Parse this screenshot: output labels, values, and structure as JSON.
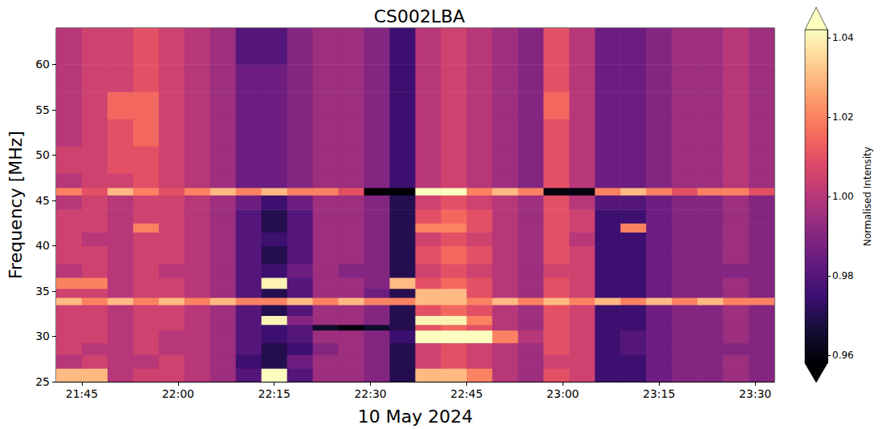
{
  "chart_data": {
    "type": "heatmap",
    "title": "CS002LBA",
    "x_label": "10 May 2024",
    "y_label": "Frequency [MHz]",
    "color": "magma",
    "grid": false,
    "xlim": [
      1301,
      1413
    ],
    "xticks": [
      {
        "value": 1305,
        "label": "21:45"
      },
      {
        "value": 1320,
        "label": "22:00"
      },
      {
        "value": 1335,
        "label": "22:15"
      },
      {
        "value": 1350,
        "label": "22:30"
      },
      {
        "value": 1365,
        "label": "22:45"
      },
      {
        "value": 1380,
        "label": "23:00"
      },
      {
        "value": 1395,
        "label": "23:15"
      },
      {
        "value": 1410,
        "label": "23:30"
      }
    ],
    "ylim": [
      25,
      64
    ],
    "yticks": [
      25,
      30,
      35,
      40,
      45,
      50,
      55,
      60
    ],
    "x_edges": [
      1301,
      1305,
      1309,
      1313,
      1317,
      1321,
      1325,
      1329,
      1333,
      1337,
      1341,
      1345,
      1349,
      1353,
      1357,
      1361,
      1365,
      1369,
      1373,
      1377,
      1381,
      1385,
      1389,
      1393,
      1397,
      1401,
      1405,
      1409,
      1413
    ],
    "y_edges": [
      25,
      26.5,
      28,
      29.3,
      30.7,
      31.3,
      32.3,
      33.5,
      34.3,
      35.3,
      36.5,
      38,
      40,
      41.5,
      42.5,
      44,
      45.6,
      46.4,
      48,
      51,
      54,
      57,
      60,
      64
    ],
    "intensity": [
      [
        1.03,
        1.03,
        1,
        1.005,
        1.005,
        1,
        0.995,
        0.98,
        1.05,
        0.98,
        0.995,
        0.995,
        0.99,
        0.97,
        1.03,
        1.03,
        1.02,
        1,
        0.995,
        1.01,
        1.005,
        0.975,
        0.975,
        0.985,
        0.99,
        0.99,
        0.995,
        0.99
      ],
      [
        1,
        1.005,
        1,
        1,
        1.005,
        1,
        0.995,
        0.975,
        0.97,
        0.985,
        0.995,
        0.995,
        0.99,
        0.97,
        1.005,
        1.01,
        1.005,
        1,
        0.995,
        1.005,
        1.005,
        0.975,
        0.975,
        0.985,
        0.99,
        0.99,
        0.995,
        0.99
      ],
      [
        1.005,
        1,
        1,
        1.005,
        1,
        1,
        0.995,
        0.98,
        0.97,
        0.975,
        0.99,
        0.995,
        0.99,
        0.97,
        1.005,
        1.01,
        1.005,
        1,
        0.995,
        1.01,
        1.005,
        0.975,
        0.98,
        0.985,
        0.99,
        0.99,
        0.99,
        0.99
      ],
      [
        1.005,
        1.005,
        1,
        1.005,
        1,
        1,
        0.995,
        0.98,
        0.975,
        0.98,
        0.995,
        0.995,
        0.99,
        0.975,
        1.06,
        1.06,
        1.06,
        1.02,
        1,
        1.01,
        1.005,
        0.975,
        0.98,
        0.985,
        0.99,
        0.99,
        0.995,
        0.99
      ],
      [
        1.005,
        1.005,
        1,
        1.005,
        1.005,
        1,
        0.995,
        0.98,
        0.975,
        0.98,
        0.965,
        0.96,
        0.965,
        0.97,
        1.01,
        1.015,
        1.01,
        1,
        0.995,
        1.01,
        1.005,
        0.975,
        0.975,
        0.985,
        0.99,
        0.99,
        0.995,
        0.99
      ],
      [
        1.005,
        1.005,
        1,
        1.005,
        1.005,
        1,
        0.995,
        0.98,
        1.04,
        0.99,
        0.995,
        0.995,
        0.99,
        0.97,
        1.04,
        1.04,
        1.02,
        1,
        0.995,
        1.01,
        1.005,
        0.975,
        0.975,
        0.985,
        0.99,
        0.99,
        0.995,
        0.99
      ],
      [
        1.005,
        1.005,
        1,
        1.005,
        1.005,
        1,
        0.995,
        0.98,
        0.97,
        0.98,
        0.995,
        0.995,
        0.99,
        0.97,
        1.01,
        1.015,
        1.01,
        1,
        0.995,
        1.01,
        1.005,
        0.975,
        0.975,
        0.985,
        0.99,
        0.99,
        0.995,
        0.99
      ],
      [
        1.03,
        1.02,
        1.03,
        1.02,
        1.03,
        1.02,
        1.03,
        1.02,
        1.02,
        1.03,
        1.02,
        1.03,
        1.02,
        1.02,
        1.03,
        1.03,
        1.02,
        1.03,
        1.02,
        1.03,
        1.02,
        1.03,
        1.02,
        1.03,
        1.02,
        1.03,
        1.02,
        1.02
      ],
      [
        1.005,
        1.005,
        1,
        1.005,
        1.005,
        1,
        0.995,
        0.98,
        0.97,
        0.98,
        0.995,
        0.995,
        0.985,
        0.97,
        1.03,
        1.03,
        1.01,
        1,
        0.995,
        1.01,
        1.005,
        0.975,
        0.975,
        0.985,
        0.99,
        0.99,
        0.995,
        0.99
      ],
      [
        1.02,
        1.02,
        1,
        1.005,
        1.005,
        1,
        0.995,
        0.98,
        1.04,
        0.98,
        0.995,
        0.995,
        0.99,
        1.03,
        1.01,
        1.015,
        1.01,
        1,
        0.995,
        1.01,
        1.005,
        0.975,
        0.975,
        0.985,
        0.99,
        0.99,
        0.995,
        0.99
      ],
      [
        1,
        1.005,
        1,
        1.005,
        1,
        1,
        0.995,
        0.98,
        0.975,
        0.985,
        0.995,
        0.99,
        0.99,
        0.97,
        1.005,
        1.01,
        1.005,
        1,
        0.995,
        1.005,
        1.005,
        0.975,
        0.975,
        0.985,
        0.99,
        0.99,
        0.99,
        0.99
      ],
      [
        1.005,
        1.005,
        1,
        1.005,
        1.005,
        1,
        0.995,
        0.98,
        0.97,
        0.98,
        0.995,
        0.995,
        0.99,
        0.97,
        1.01,
        1.015,
        1.01,
        1,
        0.995,
        1.01,
        1.005,
        0.975,
        0.975,
        0.985,
        0.99,
        0.99,
        0.995,
        0.99
      ],
      [
        1.005,
        1,
        1,
        1.005,
        1.005,
        1,
        0.995,
        0.98,
        0.975,
        0.98,
        0.995,
        0.995,
        0.99,
        0.97,
        1.005,
        1.01,
        1.005,
        1,
        0.995,
        1.01,
        1,
        0.975,
        0.975,
        0.985,
        0.99,
        0.99,
        0.995,
        0.99
      ],
      [
        1.005,
        1.005,
        1,
        1.02,
        1.005,
        1,
        0.995,
        0.98,
        0.97,
        0.98,
        0.995,
        0.995,
        0.99,
        0.97,
        1.02,
        1.02,
        1.01,
        1,
        0.995,
        1.01,
        1.005,
        0.975,
        1.02,
        0.985,
        0.99,
        0.99,
        0.995,
        0.99
      ],
      [
        1.005,
        1.005,
        1,
        1.005,
        1.005,
        1,
        0.995,
        0.98,
        0.97,
        0.98,
        0.995,
        0.995,
        0.99,
        0.97,
        1.01,
        1.015,
        1.01,
        1,
        0.995,
        1.01,
        1.005,
        0.975,
        0.975,
        0.985,
        0.99,
        0.99,
        0.995,
        0.99
      ],
      [
        1,
        1.005,
        1,
        1.005,
        1.005,
        1,
        0.995,
        0.985,
        0.975,
        0.985,
        0.995,
        0.995,
        0.99,
        0.97,
        1.005,
        1.01,
        1.005,
        1,
        0.995,
        1.01,
        1,
        0.98,
        0.98,
        0.985,
        0.99,
        0.99,
        0.995,
        0.99
      ],
      [
        1.02,
        1.01,
        1.03,
        1.02,
        1.01,
        1.02,
        1.03,
        1.02,
        1.03,
        1.02,
        1.02,
        1.01,
        0.955,
        0.955,
        1.06,
        1.06,
        1.02,
        1.03,
        1.02,
        0.96,
        0.96,
        1.02,
        1.03,
        1.02,
        1.01,
        1.02,
        1.02,
        1.01
      ],
      [
        1,
        1.005,
        1.005,
        1.01,
        1.005,
        1,
        0.995,
        0.985,
        0.985,
        0.99,
        0.995,
        0.995,
        0.99,
        0.975,
        1,
        1.005,
        1,
        0.995,
        0.99,
        1.01,
        1,
        0.985,
        0.985,
        0.99,
        0.995,
        0.995,
        1,
        0.995
      ],
      [
        1.005,
        1.005,
        1.01,
        1.01,
        1.005,
        1,
        0.995,
        0.985,
        0.985,
        0.99,
        0.995,
        0.995,
        0.99,
        0.975,
        1,
        1.005,
        1,
        0.995,
        0.99,
        1.01,
        1,
        0.985,
        0.985,
        0.99,
        0.995,
        0.995,
        1,
        0.995
      ],
      [
        1,
        1.005,
        1.01,
        1.015,
        1.005,
        1,
        0.995,
        0.985,
        0.985,
        0.99,
        0.995,
        0.995,
        0.99,
        0.975,
        1,
        1.005,
        1,
        0.995,
        0.99,
        1.01,
        1,
        0.985,
        0.985,
        0.99,
        0.995,
        0.995,
        1,
        0.995
      ],
      [
        1,
        1.005,
        1.015,
        1.015,
        1.005,
        1,
        0.995,
        0.985,
        0.985,
        0.99,
        0.995,
        0.995,
        0.99,
        0.975,
        1,
        1.005,
        1,
        0.995,
        0.99,
        1.015,
        1,
        0.985,
        0.985,
        0.99,
        0.995,
        0.995,
        1,
        0.995
      ],
      [
        1,
        1.005,
        1.005,
        1.01,
        1.005,
        1,
        0.995,
        0.985,
        0.985,
        0.99,
        0.995,
        0.995,
        0.99,
        0.975,
        1,
        1.005,
        1,
        0.995,
        0.99,
        1.01,
        1,
        0.985,
        0.985,
        0.99,
        0.995,
        0.995,
        1,
        0.995
      ],
      [
        1,
        1.005,
        1.005,
        1.01,
        1.005,
        1,
        0.995,
        0.98,
        0.98,
        0.99,
        0.995,
        0.995,
        0.99,
        0.975,
        1,
        1.005,
        1,
        0.995,
        0.99,
        1.01,
        1,
        0.985,
        0.985,
        0.99,
        0.995,
        0.995,
        1,
        0.995
      ]
    ],
    "colorbar": {
      "label": "Normalised Intensity",
      "range": [
        0.958,
        1.042
      ],
      "ticks": [
        0.96,
        0.98,
        {
          "value": 1,
          "label": "1.00"
        },
        1.02,
        1.04
      ]
    }
  }
}
